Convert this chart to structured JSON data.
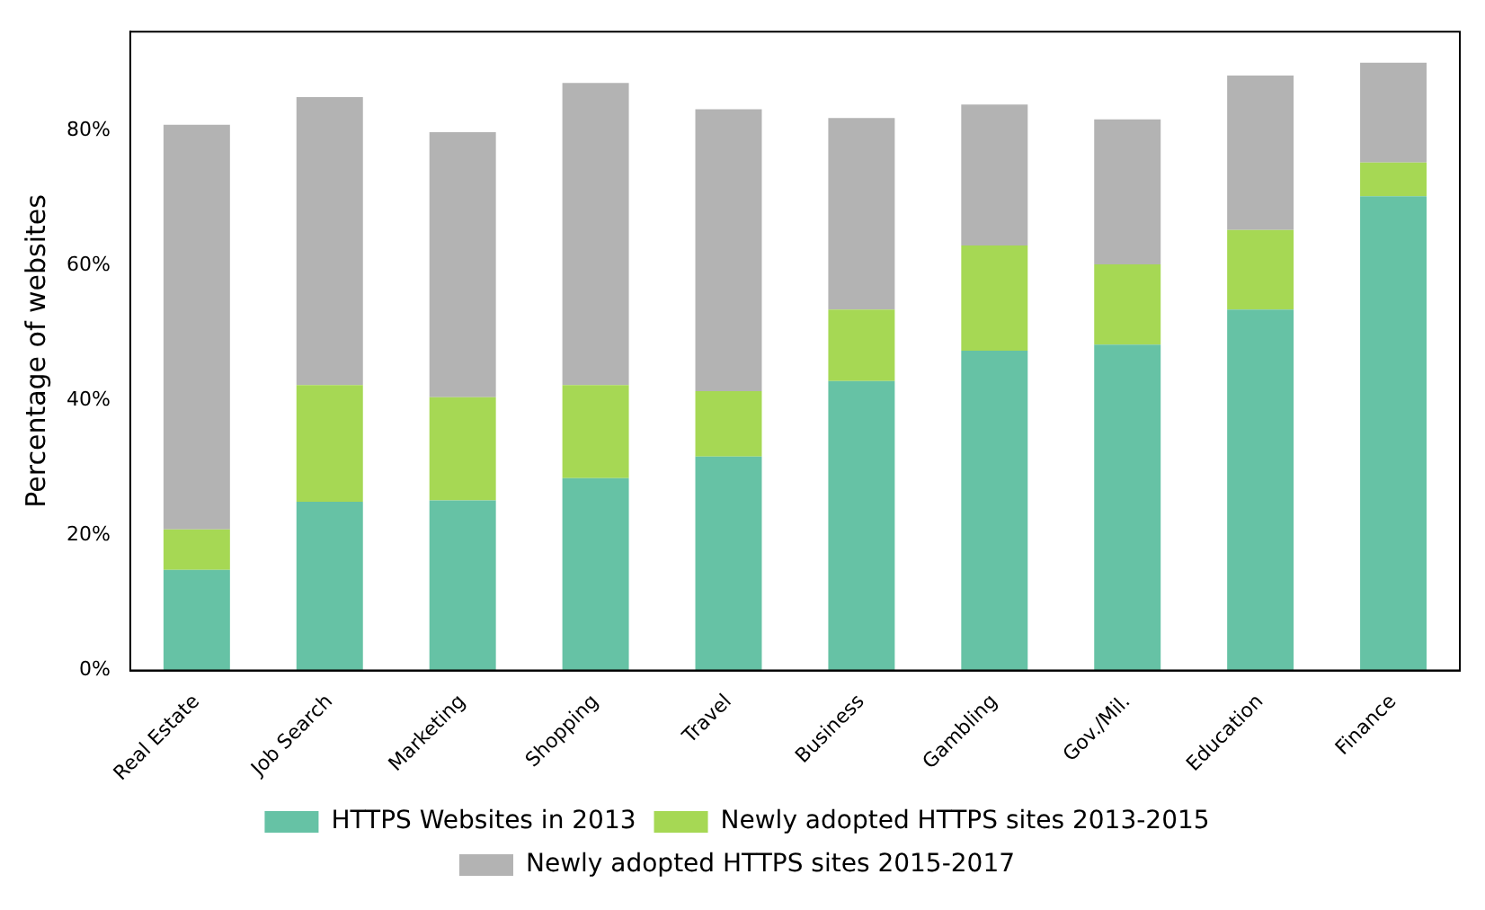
{
  "chart_data": {
    "type": "bar",
    "stacked": true,
    "ylabel": "Percentage of websites",
    "categories": [
      "Real Estate",
      "Job Search",
      "Marketing",
      "Shopping",
      "Travel",
      "Business",
      "Gambling",
      "Gov./Mil.",
      "Education",
      "Finance"
    ],
    "series": [
      {
        "name": "HTTPS Websites in 2013",
        "color": "#66c2a5",
        "values": [
          14.9,
          25.0,
          25.2,
          28.5,
          31.7,
          42.9,
          47.4,
          48.3,
          53.5,
          70.3
        ]
      },
      {
        "name": "Newly adopted HTTPS sites 2013-2015",
        "color": "#a6d854",
        "values": [
          6.0,
          17.3,
          15.3,
          13.8,
          9.7,
          10.6,
          15.6,
          11.9,
          11.8,
          5.0
        ]
      },
      {
        "name": "Newly adopted HTTPS sites 2015-2017",
        "color": "#b3b3b3",
        "values": [
          60.0,
          42.7,
          39.3,
          44.8,
          41.8,
          28.4,
          20.9,
          21.5,
          22.9,
          14.8
        ]
      }
    ],
    "ylim": [
      0,
      94.7
    ],
    "yticks": [
      {
        "value": 0,
        "label": "0%"
      },
      {
        "value": 20,
        "label": "20%"
      },
      {
        "value": 40,
        "label": "40%"
      },
      {
        "value": 60,
        "label": "60%"
      },
      {
        "value": 80,
        "label": "80%"
      }
    ],
    "grid": false,
    "legend": "bottom"
  }
}
